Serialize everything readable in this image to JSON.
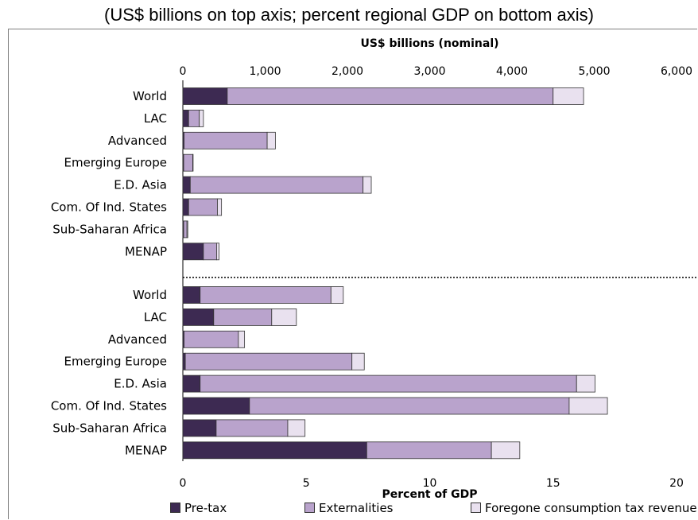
{
  "subtitle": "(US$ billions on top axis; percent regional GDP on bottom axis)",
  "colors": {
    "pretax": "#3d2a52",
    "externalities": "#b9a3cc",
    "foregone": "#e9e1ef",
    "outline": "#333333"
  },
  "legend": {
    "pretax": "Pre-tax",
    "externalities": "Externalities",
    "foregone": "Foregone consumption tax revenue"
  },
  "chart_data": [
    {
      "type": "bar",
      "orientation": "horizontal",
      "stacked": true,
      "xlabel": "US$ billions (nominal)",
      "axis_position": "top",
      "xlim": [
        0,
        6000
      ],
      "xticks": [
        "0",
        "1,000",
        "2,000",
        "3,000",
        "4,000",
        "5,000",
        "6,000"
      ],
      "categories": [
        "World",
        "LAC",
        "Advanced",
        "Emerging Europe",
        "E.D. Asia",
        "Com. Of Ind. States",
        "Sub-Saharan Africa",
        "MENAP"
      ],
      "series": [
        {
          "name": "Pre-tax",
          "values": [
            540,
            70,
            15,
            10,
            90,
            70,
            10,
            250
          ]
        },
        {
          "name": "Externalities",
          "values": [
            3960,
            130,
            1010,
            110,
            2100,
            350,
            40,
            160
          ]
        },
        {
          "name": "Foregone consumption tax revenue",
          "values": [
            370,
            50,
            100,
            5,
            100,
            50,
            10,
            30
          ]
        }
      ]
    },
    {
      "type": "bar",
      "orientation": "horizontal",
      "stacked": true,
      "xlabel": "Percent of GDP",
      "axis_position": "bottom",
      "xlim": [
        0,
        20
      ],
      "xticks": [
        "0",
        "5",
        "10",
        "15",
        "20"
      ],
      "categories": [
        "World",
        "LAC",
        "Advanced",
        "Emerging Europe",
        "E.D. Asia",
        "Com. Of Ind. States",
        "Sub-Saharan Africa",
        "MENAP"
      ],
      "series": [
        {
          "name": "Pre-tax",
          "values": [
            0.7,
            1.25,
            0.05,
            0.1,
            0.7,
            2.7,
            1.35,
            7.45
          ]
        },
        {
          "name": "Externalities",
          "values": [
            5.3,
            2.35,
            2.2,
            6.75,
            15.25,
            12.95,
            2.9,
            5.05
          ]
        },
        {
          "name": "Foregone consumption tax revenue",
          "values": [
            0.5,
            1.0,
            0.25,
            0.5,
            0.75,
            1.55,
            0.7,
            1.15
          ]
        }
      ]
    }
  ]
}
